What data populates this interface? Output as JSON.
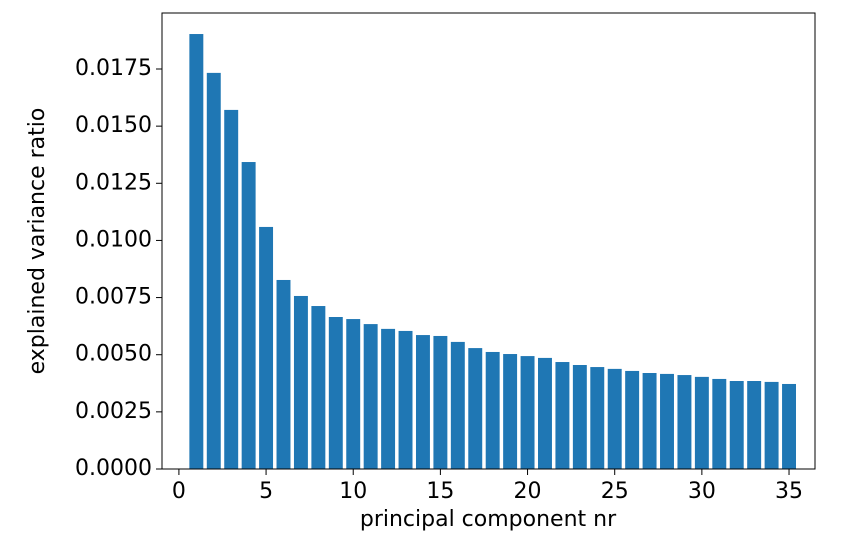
{
  "chart_data": {
    "type": "bar",
    "x_label": "principal component nr",
    "y_label": "explained variance ratio",
    "x": [
      1,
      2,
      3,
      4,
      5,
      6,
      7,
      8,
      9,
      10,
      11,
      12,
      13,
      14,
      15,
      16,
      17,
      18,
      19,
      20,
      21,
      22,
      23,
      24,
      25,
      26,
      27,
      28,
      29,
      30,
      31,
      32,
      33,
      34,
      35
    ],
    "values": [
      0.01903,
      0.01733,
      0.01571,
      0.01343,
      0.01059,
      0.00827,
      0.00757,
      0.00713,
      0.00665,
      0.00656,
      0.00634,
      0.00613,
      0.00604,
      0.00586,
      0.00582,
      0.00556,
      0.00529,
      0.00512,
      0.00503,
      0.00494,
      0.00486,
      0.00468,
      0.00455,
      0.00446,
      0.00438,
      0.00429,
      0.0042,
      0.00416,
      0.00411,
      0.00403,
      0.00394,
      0.00385,
      0.00385,
      0.00381,
      0.00372
    ],
    "color": "#1f77b4",
    "bar_width": 0.8,
    "xlim": [
      -0.97,
      36.49
    ],
    "ylim": [
      0,
      0.01995
    ],
    "xticks": [
      0,
      5,
      10,
      15,
      20,
      25,
      30,
      35
    ],
    "yticks": [
      {
        "value": 0,
        "label": "0.0000"
      },
      {
        "value": 0.0025,
        "label": "0.0025"
      },
      {
        "value": 0.005,
        "label": "0.0050"
      },
      {
        "value": 0.0075,
        "label": "0.0075"
      },
      {
        "value": 0.01,
        "label": "0.0100"
      },
      {
        "value": 0.0125,
        "label": "0.0125"
      },
      {
        "value": 0.015,
        "label": "0.0150"
      },
      {
        "value": 0.0175,
        "label": "0.0175"
      }
    ]
  }
}
